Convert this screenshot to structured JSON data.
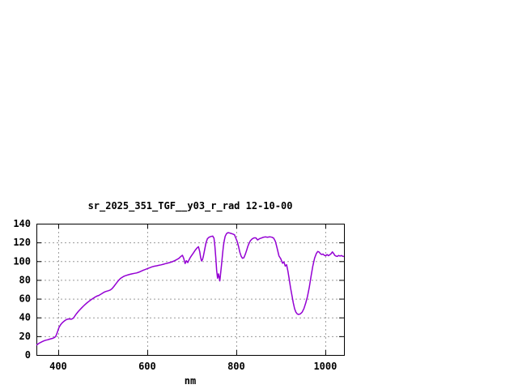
{
  "window": {
    "background": "#ffffff"
  },
  "chart_data": {
    "type": "line",
    "title": "sr_2025_351_TGF__y03_r_rad 12-10-00",
    "xlabel": "nm",
    "ylabel": "",
    "xlim": [
      351,
      1042
    ],
    "ylim": [
      0,
      140
    ],
    "xticks": [
      400,
      600,
      800,
      1000
    ],
    "yticks": [
      0,
      20,
      40,
      60,
      80,
      100,
      120,
      140
    ],
    "grid": true,
    "legend_position": "none",
    "line_color": "#9400d3",
    "grid_color": "#9b9b9b",
    "axis_color": "#000000",
    "series": [
      {
        "name": "sr_2025_351_TGF__y03_r_rad",
        "points": [
          [
            351,
            10.5
          ],
          [
            354,
            11.5
          ],
          [
            357,
            12.5
          ],
          [
            360,
            13.2
          ],
          [
            364,
            14.2
          ],
          [
            368,
            15
          ],
          [
            372,
            15.7
          ],
          [
            376,
            16.2
          ],
          [
            380,
            16.8
          ],
          [
            384,
            17.3
          ],
          [
            388,
            17.8
          ],
          [
            391,
            18.5
          ],
          [
            394,
            19.5
          ],
          [
            396,
            21.5
          ],
          [
            398,
            24
          ],
          [
            400,
            27
          ],
          [
            402,
            29.5
          ],
          [
            405,
            32
          ],
          [
            408,
            33.8
          ],
          [
            411,
            35.2
          ],
          [
            414,
            36.3
          ],
          [
            417,
            37.3
          ],
          [
            420,
            38
          ],
          [
            423,
            38.4
          ],
          [
            426,
            38.4
          ],
          [
            429,
            38.1
          ],
          [
            432,
            38.6
          ],
          [
            435,
            39.8
          ],
          [
            438,
            42
          ],
          [
            441,
            44
          ],
          [
            445,
            46.3
          ],
          [
            449,
            48.4
          ],
          [
            453,
            50.4
          ],
          [
            457,
            52.3
          ],
          [
            461,
            54.1
          ],
          [
            465,
            55.7
          ],
          [
            469,
            57.2
          ],
          [
            473,
            58.7
          ],
          [
            477,
            60
          ],
          [
            481,
            61.2
          ],
          [
            485,
            62.3
          ],
          [
            488,
            63
          ],
          [
            491,
            63.4
          ],
          [
            494,
            64.3
          ],
          [
            497,
            65.2
          ],
          [
            501,
            66.4
          ],
          [
            505,
            67.3
          ],
          [
            509,
            68
          ],
          [
            513,
            68.5
          ],
          [
            517,
            69.3
          ],
          [
            521,
            70.8
          ],
          [
            525,
            73
          ],
          [
            529,
            75.5
          ],
          [
            533,
            78
          ],
          [
            537,
            80.3
          ],
          [
            541,
            82
          ],
          [
            545,
            83.2
          ],
          [
            549,
            84.2
          ],
          [
            553,
            84.9
          ],
          [
            557,
            85.5
          ],
          [
            561,
            86
          ],
          [
            566,
            86.5
          ],
          [
            571,
            87
          ],
          [
            576,
            87.5
          ],
          [
            581,
            88.2
          ],
          [
            586,
            89.3
          ],
          [
            591,
            90.4
          ],
          [
            596,
            91.3
          ],
          [
            601,
            92.2
          ],
          [
            606,
            93.1
          ],
          [
            611,
            94
          ],
          [
            616,
            94.6
          ],
          [
            621,
            95.1
          ],
          [
            626,
            95.6
          ],
          [
            631,
            96.1
          ],
          [
            636,
            96.7
          ],
          [
            641,
            97.4
          ],
          [
            646,
            98
          ],
          [
            651,
            98.6
          ],
          [
            656,
            99.4
          ],
          [
            661,
            100.4
          ],
          [
            666,
            101.6
          ],
          [
            671,
            103
          ],
          [
            675,
            104.8
          ],
          [
            679,
            106.3
          ],
          [
            682,
            103
          ],
          [
            685,
            97.5
          ],
          [
            688,
            100.5
          ],
          [
            691,
            98.5
          ],
          [
            694,
            101.5
          ],
          [
            697,
            104.2
          ],
          [
            700,
            106.2
          ],
          [
            704,
            109
          ],
          [
            708,
            111.8
          ],
          [
            712,
            114.2
          ],
          [
            715,
            115.5
          ],
          [
            718,
            110
          ],
          [
            720,
            104
          ],
          [
            722,
            100.2
          ],
          [
            724,
            101.5
          ],
          [
            726,
            105
          ],
          [
            729,
            112.5
          ],
          [
            732,
            119.5
          ],
          [
            735,
            123.8
          ],
          [
            738,
            125.2
          ],
          [
            741,
            126
          ],
          [
            744,
            126.4
          ],
          [
            747,
            126.8
          ],
          [
            750,
            124.5
          ],
          [
            752,
            116
          ],
          [
            754,
            104
          ],
          [
            756,
            90
          ],
          [
            758,
            81.8
          ],
          [
            760,
            86.5
          ],
          [
            762,
            82
          ],
          [
            763,
            79
          ],
          [
            765,
            88
          ],
          [
            767,
            97
          ],
          [
            769,
            107
          ],
          [
            771,
            116
          ],
          [
            773,
            122
          ],
          [
            775,
            126.5
          ],
          [
            778,
            129.3
          ],
          [
            781,
            130.4
          ],
          [
            784,
            130.2
          ],
          [
            788,
            129.6
          ],
          [
            792,
            129
          ],
          [
            796,
            128.2
          ],
          [
            799,
            124.5
          ],
          [
            802,
            121.2
          ],
          [
            805,
            115.8
          ],
          [
            808,
            109.6
          ],
          [
            811,
            105.2
          ],
          [
            814,
            103.1
          ],
          [
            817,
            103.6
          ],
          [
            820,
            107
          ],
          [
            823,
            111.2
          ],
          [
            826,
            115.8
          ],
          [
            829,
            119.4
          ],
          [
            832,
            121.9
          ],
          [
            836,
            123.8
          ],
          [
            840,
            124.9
          ],
          [
            844,
            124.9
          ],
          [
            848,
            122.6
          ],
          [
            852,
            123.9
          ],
          [
            856,
            124.6
          ],
          [
            860,
            125.4
          ],
          [
            865,
            125.9
          ],
          [
            870,
            125.6
          ],
          [
            875,
            126
          ],
          [
            880,
            125.6
          ],
          [
            884,
            124.6
          ],
          [
            888,
            121
          ],
          [
            892,
            113.5
          ],
          [
            896,
            105.5
          ],
          [
            900,
            102.6
          ],
          [
            904,
            97.8
          ],
          [
            907,
            99.2
          ],
          [
            910,
            94.8
          ],
          [
            913,
            96.2
          ],
          [
            916,
            89.5
          ],
          [
            919,
            80.5
          ],
          [
            922,
            71.5
          ],
          [
            925,
            63.5
          ],
          [
            928,
            55.8
          ],
          [
            931,
            49.3
          ],
          [
            934,
            45.6
          ],
          [
            937,
            43.7
          ],
          [
            940,
            43.2
          ],
          [
            944,
            43.8
          ],
          [
            948,
            45.6
          ],
          [
            952,
            49.4
          ],
          [
            956,
            55.3
          ],
          [
            960,
            62.4
          ],
          [
            964,
            72
          ],
          [
            968,
            83.8
          ],
          [
            972,
            94.8
          ],
          [
            976,
            103.3
          ],
          [
            980,
            108.3
          ],
          [
            983,
            110.4
          ],
          [
            986,
            109.8
          ],
          [
            989,
            107.9
          ],
          [
            992,
            107.2
          ],
          [
            995,
            107.6
          ],
          [
            998,
            106.2
          ],
          [
            1001,
            105.9
          ],
          [
            1004,
            107.1
          ],
          [
            1007,
            105.9
          ],
          [
            1010,
            106.8
          ],
          [
            1013,
            108
          ],
          [
            1016,
            109.9
          ],
          [
            1019,
            108
          ],
          [
            1021,
            106.3
          ],
          [
            1024,
            105.4
          ],
          [
            1027,
            105.1
          ],
          [
            1030,
            106.1
          ],
          [
            1033,
            105.4
          ],
          [
            1036,
            106
          ],
          [
            1039,
            105.3
          ],
          [
            1042,
            105
          ]
        ]
      }
    ]
  }
}
